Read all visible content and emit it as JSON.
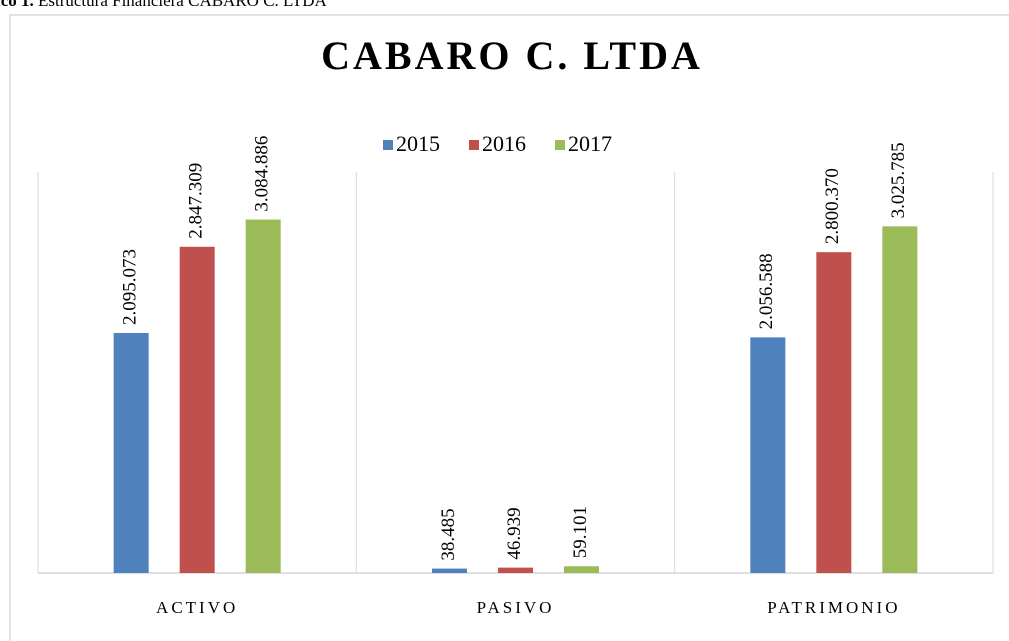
{
  "caption": {
    "label": "ico 1.",
    "text": "Estructura Financiera CABARO C. LTDA"
  },
  "chart_data": {
    "type": "bar",
    "title": "CABARO C. LTDA",
    "categories": [
      "ACTIVO",
      "PASIVO",
      "PATRIMONIO"
    ],
    "series": [
      {
        "name": "2015",
        "color": "#4f81bd",
        "values": [
          2095073,
          38485,
          2056588
        ],
        "value_labels": [
          "2.095.073",
          "38.485",
          "2.056.588"
        ]
      },
      {
        "name": "2016",
        "color": "#c0504d",
        "values": [
          2847309,
          46939,
          2800370
        ],
        "value_labels": [
          "2.847.309",
          "46.939",
          "2.800.370"
        ]
      },
      {
        "name": "2017",
        "color": "#9bbb59",
        "values": [
          3084886,
          59101,
          3025785
        ],
        "value_labels": [
          "3.084.886",
          "59.101",
          "3.025.785"
        ]
      }
    ],
    "ylim": [
      0,
      3500000
    ],
    "legend": "top"
  }
}
